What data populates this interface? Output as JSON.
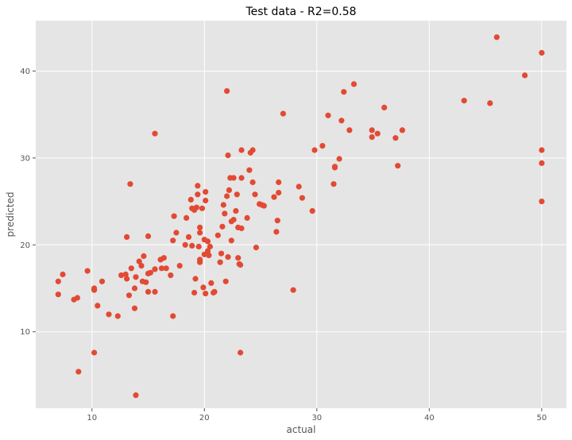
{
  "chart_data": {
    "type": "scatter",
    "title": "Test data  -  R2=0.58",
    "xlabel": "actual",
    "ylabel": "predicted",
    "xlim": [
      5,
      52.2
    ],
    "ylim": [
      1.2,
      45.8
    ],
    "xticks": [
      10,
      20,
      30,
      40,
      50
    ],
    "yticks": [
      10,
      20,
      30,
      40
    ],
    "grid": true,
    "colors": {
      "background": "#e5e5e5",
      "grid": "#ffffff",
      "marker": "#e24a33"
    },
    "points": [
      [
        7.0,
        15.8
      ],
      [
        7.0,
        14.3
      ],
      [
        7.4,
        16.6
      ],
      [
        8.4,
        13.7
      ],
      [
        8.7,
        13.9
      ],
      [
        8.8,
        5.4
      ],
      [
        9.6,
        17.0
      ],
      [
        10.2,
        15.0
      ],
      [
        10.2,
        14.8
      ],
      [
        10.2,
        7.6
      ],
      [
        10.5,
        13.0
      ],
      [
        10.9,
        15.8
      ],
      [
        11.5,
        12.0
      ],
      [
        12.3,
        11.8
      ],
      [
        12.6,
        16.5
      ],
      [
        13.0,
        16.6
      ],
      [
        13.1,
        16.1
      ],
      [
        13.1,
        20.9
      ],
      [
        13.3,
        14.2
      ],
      [
        13.4,
        27.0
      ],
      [
        13.5,
        17.3
      ],
      [
        13.8,
        15.0
      ],
      [
        13.8,
        12.7
      ],
      [
        13.9,
        16.3
      ],
      [
        13.9,
        2.7
      ],
      [
        14.2,
        18.1
      ],
      [
        14.4,
        17.6
      ],
      [
        14.5,
        15.8
      ],
      [
        14.6,
        18.7
      ],
      [
        14.8,
        15.7
      ],
      [
        15.0,
        16.7
      ],
      [
        15.0,
        21.0
      ],
      [
        15.0,
        14.6
      ],
      [
        15.2,
        16.8
      ],
      [
        15.6,
        17.2
      ],
      [
        15.6,
        32.8
      ],
      [
        15.6,
        14.6
      ],
      [
        16.1,
        18.3
      ],
      [
        16.2,
        17.3
      ],
      [
        16.4,
        18.5
      ],
      [
        16.6,
        17.3
      ],
      [
        17.0,
        16.5
      ],
      [
        17.2,
        20.5
      ],
      [
        17.2,
        11.8
      ],
      [
        17.3,
        23.3
      ],
      [
        17.5,
        21.4
      ],
      [
        17.8,
        17.6
      ],
      [
        18.3,
        20.0
      ],
      [
        18.4,
        23.1
      ],
      [
        18.6,
        20.9
      ],
      [
        18.8,
        25.2
      ],
      [
        18.9,
        24.2
      ],
      [
        18.9,
        19.9
      ],
      [
        19.1,
        14.5
      ],
      [
        19.1,
        24.0
      ],
      [
        19.2,
        16.1
      ],
      [
        19.3,
        24.3
      ],
      [
        19.4,
        26.8
      ],
      [
        19.4,
        25.8
      ],
      [
        19.5,
        19.8
      ],
      [
        19.6,
        22.0
      ],
      [
        19.6,
        21.4
      ],
      [
        19.6,
        18.3
      ],
      [
        19.6,
        18.0
      ],
      [
        19.8,
        24.2
      ],
      [
        19.9,
        15.1
      ],
      [
        20.0,
        20.6
      ],
      [
        20.0,
        18.9
      ],
      [
        20.1,
        26.1
      ],
      [
        20.1,
        25.1
      ],
      [
        20.1,
        14.4
      ],
      [
        20.3,
        20.4
      ],
      [
        20.3,
        19.3
      ],
      [
        20.4,
        18.8
      ],
      [
        20.5,
        19.8
      ],
      [
        20.6,
        15.6
      ],
      [
        20.8,
        14.5
      ],
      [
        20.9,
        14.6
      ],
      [
        21.2,
        21.1
      ],
      [
        21.4,
        18.0
      ],
      [
        21.5,
        19.0
      ],
      [
        21.6,
        22.1
      ],
      [
        21.7,
        24.6
      ],
      [
        21.8,
        23.6
      ],
      [
        21.9,
        15.8
      ],
      [
        22.0,
        37.7
      ],
      [
        22.0,
        25.6
      ],
      [
        22.1,
        30.3
      ],
      [
        22.1,
        18.6
      ],
      [
        22.2,
        26.3
      ],
      [
        22.3,
        27.7
      ],
      [
        22.4,
        22.7
      ],
      [
        22.4,
        20.5
      ],
      [
        22.6,
        27.7
      ],
      [
        22.6,
        22.9
      ],
      [
        22.8,
        23.9
      ],
      [
        22.9,
        25.8
      ],
      [
        23.0,
        22.0
      ],
      [
        23.0,
        18.5
      ],
      [
        23.1,
        17.8
      ],
      [
        23.2,
        17.7
      ],
      [
        23.2,
        7.6
      ],
      [
        23.3,
        30.9
      ],
      [
        23.3,
        27.7
      ],
      [
        23.3,
        21.9
      ],
      [
        23.8,
        23.1
      ],
      [
        24.0,
        28.6
      ],
      [
        24.1,
        30.6
      ],
      [
        24.3,
        30.9
      ],
      [
        24.3,
        27.2
      ],
      [
        24.5,
        25.8
      ],
      [
        24.6,
        19.7
      ],
      [
        24.9,
        24.7
      ],
      [
        25.1,
        24.6
      ],
      [
        25.3,
        24.5
      ],
      [
        26.2,
        25.5
      ],
      [
        26.4,
        21.5
      ],
      [
        26.5,
        22.8
      ],
      [
        26.6,
        27.2
      ],
      [
        26.6,
        26.0
      ],
      [
        27.0,
        35.1
      ],
      [
        27.9,
        14.8
      ],
      [
        28.4,
        26.7
      ],
      [
        28.7,
        25.4
      ],
      [
        29.6,
        23.9
      ],
      [
        29.8,
        30.9
      ],
      [
        30.5,
        31.4
      ],
      [
        31.0,
        34.9
      ],
      [
        31.5,
        27.0
      ],
      [
        31.6,
        28.9
      ],
      [
        31.6,
        29.0
      ],
      [
        32.0,
        29.9
      ],
      [
        32.2,
        34.3
      ],
      [
        32.4,
        37.6
      ],
      [
        32.9,
        33.2
      ],
      [
        33.3,
        38.5
      ],
      [
        34.9,
        33.2
      ],
      [
        34.9,
        32.4
      ],
      [
        35.4,
        32.8
      ],
      [
        36.0,
        35.8
      ],
      [
        37.0,
        32.3
      ],
      [
        37.2,
        29.1
      ],
      [
        37.6,
        33.2
      ],
      [
        43.1,
        36.6
      ],
      [
        45.4,
        36.3
      ],
      [
        46.0,
        43.9
      ],
      [
        48.5,
        39.5
      ],
      [
        50.0,
        42.1
      ],
      [
        50.0,
        30.9
      ],
      [
        50.0,
        29.4
      ],
      [
        50.0,
        25.0
      ]
    ]
  }
}
